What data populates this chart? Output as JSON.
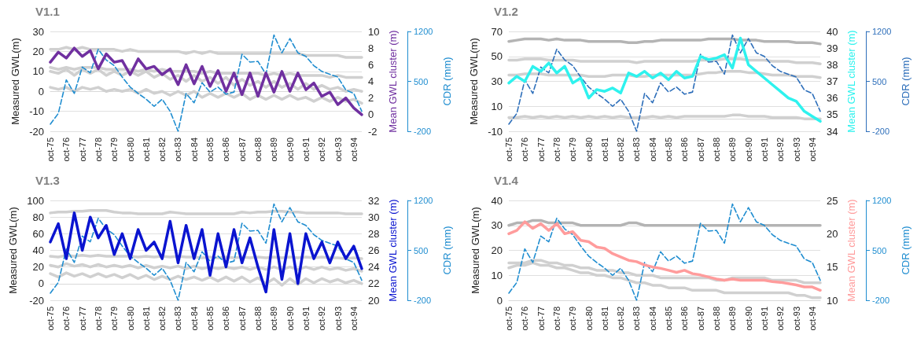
{
  "chart_data": [
    {
      "type": "line",
      "title": "V1.1",
      "ylabel": "Measured GWL(m)",
      "y2label": "Mean GWL cluster (m)",
      "y3label": "CDR (mm)",
      "marker": "none",
      "grid": "y",
      "categories": [
        "oct-75",
        null,
        "oct-76",
        null,
        "oct-77",
        null,
        "oct-78",
        null,
        "oct-79",
        null,
        "oct-80",
        null,
        "oct-81",
        null,
        "oct-82",
        null,
        "oct-83",
        null,
        "oct-84",
        null,
        "oct-85",
        null,
        "oct-86",
        null,
        "oct-87",
        null,
        "oct-88",
        null,
        "oct-89",
        null,
        "oct-90",
        null,
        "oct-91",
        null,
        "oct-92",
        null,
        "oct-93",
        null,
        "oct-94",
        null
      ],
      "ylim": [
        -20,
        30
      ],
      "yticks": [
        -20,
        -10,
        0,
        10,
        20,
        30
      ],
      "y2lim": [
        -2,
        10
      ],
      "y2ticks": [
        -2,
        0,
        2,
        4,
        6,
        8,
        10
      ],
      "y3lim": [
        -200,
        1200
      ],
      "y3ticks": [
        -200,
        500,
        1200
      ],
      "series": [
        {
          "color": "#d0d0d0",
          "values": [
            21,
            21,
            22,
            21,
            22,
            21,
            21,
            21,
            21,
            20,
            21,
            20,
            20,
            20,
            20,
            20,
            20,
            19,
            20,
            19,
            20,
            19,
            19,
            19,
            19,
            19,
            19,
            19,
            19,
            19,
            19,
            19,
            18,
            18,
            18,
            18,
            18,
            17,
            17,
            17
          ]
        },
        {
          "color": "#d0d0d0",
          "values": [
            12,
            11,
            12,
            11,
            12,
            12,
            12,
            11,
            11,
            11,
            11,
            10,
            11,
            10,
            11,
            10,
            10,
            10,
            10,
            9,
            10,
            9,
            9,
            9,
            9,
            9,
            9,
            8,
            9,
            8,
            9,
            8,
            8,
            8,
            8,
            7,
            8,
            7,
            7,
            7
          ]
        },
        {
          "color": "#d0d0d0",
          "values": [
            10,
            9,
            11,
            8,
            11,
            9,
            11,
            8,
            10,
            8,
            10,
            8,
            10,
            7,
            9,
            6,
            8,
            5,
            8,
            5,
            7,
            4,
            7,
            3,
            6,
            3,
            5,
            2,
            5,
            2,
            4,
            1,
            4,
            1,
            3,
            1,
            2,
            0,
            1,
            0
          ]
        },
        {
          "color": "#d0d0d0",
          "values": [
            2,
            1,
            2,
            0,
            2,
            1,
            2,
            0,
            1,
            0,
            1,
            -1,
            1,
            -1,
            0,
            -2,
            0,
            -2,
            0,
            -3,
            -1,
            -3,
            -1,
            -3,
            -1,
            -4,
            -2,
            -4,
            -2,
            -4,
            -2,
            -4,
            -3,
            -5,
            -3,
            -5,
            -3,
            -5,
            -4,
            -6
          ]
        },
        {
          "color": "#7030a0",
          "axis": "y2",
          "values": [
            6.3,
            7.5,
            6.8,
            8.0,
            7.0,
            7.7,
            5.5,
            7.3,
            6.3,
            6.5,
            4.8,
            6.7,
            5.5,
            5.8,
            4.8,
            5.5,
            3.6,
            6.0,
            3.7,
            5.8,
            3.4,
            5.3,
            2.8,
            5.0,
            2.4,
            5.0,
            2.2,
            5.0,
            2.7,
            5.2,
            2.8,
            5.0,
            3.0,
            3.8,
            2.2,
            2.7,
            1.2,
            2.0,
            0.8,
            0.0
          ]
        },
        {
          "color": "#1f8dd0",
          "axis": "y3",
          "line_style": "dashed",
          "values": [
            -100,
            50,
            520,
            330,
            700,
            620,
            950,
            800,
            720,
            560,
            420,
            330,
            250,
            150,
            250,
            80,
            -200,
            330,
            200,
            480,
            350,
            420,
            320,
            350,
            880,
            770,
            780,
            600,
            1150,
            900,
            1100,
            900,
            850,
            720,
            640,
            600,
            560,
            380,
            330,
            80
          ]
        }
      ]
    },
    {
      "type": "line",
      "title": "V1.2",
      "ylabel": "Measured GWL(m)",
      "y2label": "Mean GWL cluster (m)",
      "y3label": "CDR (mm)",
      "marker": "none",
      "grid": "y",
      "categories": [
        "oct-75",
        null,
        "oct-76",
        null,
        "oct-77",
        null,
        "oct-78",
        null,
        "oct-79",
        null,
        "oct-80",
        null,
        "oct-81",
        null,
        "oct-82",
        null,
        "oct-83",
        null,
        "oct-84",
        null,
        "oct-85",
        null,
        "oct-86",
        null,
        "oct-87",
        null,
        "oct-88",
        null,
        "oct-89",
        null,
        "oct-90",
        null,
        "oct-91",
        null,
        "oct-92",
        null,
        "oct-93",
        null,
        "oct-94",
        null
      ],
      "ylim": [
        -10,
        70
      ],
      "yticks": [
        -10,
        10,
        30,
        50,
        70
      ],
      "y2lim": [
        34,
        40
      ],
      "y2ticks": [
        34,
        35,
        36,
        37,
        38,
        39,
        40
      ],
      "y3lim": [
        -200,
        1200
      ],
      "y3ticks": [
        -200,
        500,
        1200
      ],
      "series": [
        {
          "color": "#b4b4b4",
          "values": [
            62,
            63,
            64,
            64,
            64,
            63,
            64,
            63,
            63,
            63,
            62,
            62,
            62,
            62,
            62,
            61,
            61,
            62,
            62,
            63,
            63,
            63,
            63,
            63,
            63,
            64,
            64,
            64,
            64,
            63,
            63,
            63,
            62,
            62,
            62,
            62,
            61,
            61,
            61,
            60
          ]
        },
        {
          "color": "#d0d0d0",
          "values": [
            47,
            47,
            48,
            48,
            48,
            47,
            47,
            47,
            47,
            46,
            46,
            46,
            46,
            46,
            46,
            46,
            45,
            46,
            46,
            46,
            46,
            46,
            46,
            46,
            47,
            47,
            47,
            48,
            48,
            48,
            47,
            47,
            47,
            46,
            46,
            46,
            45,
            45,
            45,
            44
          ]
        },
        {
          "color": "#d0d0d0",
          "values": [
            35,
            35,
            36,
            36,
            36,
            35,
            35,
            35,
            35,
            35,
            34,
            34,
            34,
            35,
            35,
            35,
            34,
            34,
            35,
            35,
            35,
            35,
            35,
            35,
            36,
            37,
            37,
            38,
            38,
            38,
            37,
            37,
            36,
            35,
            35,
            35,
            34,
            34,
            34,
            33
          ]
        },
        {
          "color": "#d0d0d0",
          "values": [
            1,
            1,
            2,
            1,
            2,
            1,
            2,
            1,
            2,
            1,
            2,
            1,
            2,
            1,
            2,
            1,
            1,
            1,
            2,
            1,
            2,
            1,
            2,
            2,
            2,
            2,
            2,
            2,
            3,
            3,
            2,
            2,
            2,
            1,
            1,
            1,
            1,
            0,
            0,
            0
          ]
        },
        {
          "color": "#2ef2ee",
          "axis": "y2",
          "values": [
            36.9,
            37.3,
            37.0,
            37.9,
            37.6,
            38.1,
            37.5,
            37.9,
            36.9,
            37.2,
            36.0,
            36.5,
            36.4,
            36.6,
            36.3,
            37.5,
            37.3,
            37.6,
            37.2,
            37.5,
            37.1,
            37.6,
            37.2,
            37.3,
            38.5,
            38.3,
            38.4,
            38.6,
            37.8,
            39.6,
            38.0,
            37.6,
            37.2,
            36.8,
            36.4,
            36.0,
            35.8,
            35.2,
            34.9,
            34.6
          ]
        },
        {
          "color": "#2e6fba",
          "axis": "y3",
          "line_style": "dashed",
          "values": [
            -100,
            50,
            520,
            330,
            700,
            620,
            950,
            800,
            720,
            560,
            420,
            330,
            250,
            150,
            250,
            80,
            -200,
            330,
            200,
            480,
            350,
            420,
            320,
            350,
            880,
            770,
            780,
            600,
            1150,
            900,
            1100,
            900,
            850,
            720,
            640,
            600,
            560,
            380,
            330,
            80
          ]
        }
      ]
    },
    {
      "type": "line",
      "title": "V1.3",
      "ylabel": "Measured GWL(m)",
      "y2label": "Mean GWL cluster (m)",
      "y3label": "CDR (mm)",
      "marker": "none",
      "grid": "y",
      "categories": [
        "oct-75",
        null,
        "oct-76",
        null,
        "oct-77",
        null,
        "oct-78",
        null,
        "oct-79",
        null,
        "oct-80",
        null,
        "oct-81",
        null,
        "oct-82",
        null,
        "oct-83",
        null,
        "oct-84",
        null,
        "oct-85",
        null,
        "oct-86",
        null,
        "oct-87",
        null,
        "oct-88",
        null,
        "oct-89",
        null,
        "oct-90",
        null,
        "oct-91",
        null,
        "oct-92",
        null,
        "oct-93",
        null,
        "oct-94",
        null
      ],
      "ylim": [
        -20,
        100
      ],
      "yticks": [
        -20,
        0,
        20,
        40,
        60,
        80,
        100
      ],
      "y2lim": [
        20,
        32
      ],
      "y2ticks": [
        20,
        22,
        24,
        26,
        28,
        30,
        32
      ],
      "y3lim": [
        -200,
        1200
      ],
      "y3ticks": [
        -200,
        500,
        1200
      ],
      "series": [
        {
          "color": "#d0d0d0",
          "values": [
            85,
            86,
            86,
            87,
            87,
            88,
            88,
            88,
            86,
            85,
            85,
            84,
            84,
            84,
            84,
            86,
            85,
            84,
            84,
            84,
            84,
            84,
            84,
            84,
            86,
            85,
            86,
            86,
            87,
            87,
            86,
            86,
            85,
            85,
            85,
            85,
            85,
            84,
            84,
            84
          ]
        },
        {
          "color": "#d0d0d0",
          "values": [
            33,
            32,
            34,
            33,
            34,
            33,
            34,
            33,
            33,
            33,
            33,
            32,
            33,
            32,
            33,
            32,
            33,
            32,
            32,
            31,
            32,
            31,
            32,
            31,
            32,
            31,
            32,
            31,
            32,
            31,
            32,
            31,
            32,
            31,
            32,
            31,
            31,
            30,
            31,
            30
          ]
        },
        {
          "color": "#d0d0d0",
          "values": [
            22,
            20,
            24,
            21,
            23,
            20,
            23,
            20,
            22,
            20,
            22,
            19,
            22,
            19,
            21,
            19,
            21,
            18,
            21,
            18,
            20,
            18,
            20,
            18,
            20,
            17,
            20,
            17,
            20,
            17,
            20,
            17,
            20,
            17,
            20,
            17,
            19,
            16,
            18,
            15
          ]
        },
        {
          "color": "#d0d0d0",
          "values": [
            12,
            8,
            13,
            9,
            12,
            8,
            12,
            8,
            11,
            7,
            11,
            6,
            10,
            5,
            9,
            5,
            9,
            5,
            8,
            4,
            8,
            3,
            8,
            3,
            8,
            2,
            7,
            0,
            6,
            -2,
            6,
            -1,
            6,
            1,
            6,
            2,
            5,
            1,
            4,
            0
          ]
        },
        {
          "color": "#0a14d0",
          "axis": "y2",
          "values": [
            27.0,
            29.2,
            25.0,
            30.5,
            26.0,
            30.0,
            27.5,
            29.0,
            25.5,
            28.0,
            25.0,
            28.5,
            26.0,
            27.0,
            25.0,
            29.5,
            24.5,
            29.0,
            25.0,
            28.5,
            23.0,
            28.0,
            24.0,
            28.5,
            24.5,
            27.5,
            24.0,
            21.0,
            28.5,
            22.5,
            28.0,
            22.0,
            28.0,
            25.0,
            27.0,
            24.5,
            27.0,
            25.0,
            26.5,
            23.8
          ]
        },
        {
          "color": "#1f8dd0",
          "axis": "y3",
          "line_style": "dashed",
          "values": [
            -100,
            50,
            520,
            330,
            700,
            620,
            950,
            800,
            720,
            560,
            420,
            330,
            250,
            150,
            250,
            80,
            -200,
            330,
            200,
            480,
            350,
            420,
            320,
            350,
            880,
            770,
            780,
            600,
            1150,
            900,
            1100,
            900,
            850,
            720,
            640,
            600,
            560,
            380,
            330,
            80
          ]
        }
      ]
    },
    {
      "type": "line",
      "title": "V1.4",
      "ylabel": "Measured GWL(m)",
      "y2label": "Mean GWL cluster (m)",
      "y3label": "CDR (mm)",
      "marker": "none",
      "grid": "y",
      "categories": [
        "oct-75",
        null,
        "oct-76",
        null,
        "oct-77",
        null,
        "oct-78",
        null,
        "oct-79",
        null,
        "oct-80",
        null,
        "oct-81",
        null,
        "oct-82",
        null,
        "oct-83",
        null,
        "oct-84",
        null,
        "oct-85",
        null,
        "oct-86",
        null,
        "oct-87",
        null,
        "oct-88",
        null,
        "oct-89",
        null,
        "oct-90",
        null,
        "oct-91",
        null,
        "oct-92",
        null,
        "oct-93",
        null,
        "oct-94",
        null
      ],
      "ylim": [
        0,
        40
      ],
      "yticks": [
        0,
        10,
        20,
        30,
        40
      ],
      "y2lim": [
        10,
        25
      ],
      "y2ticks": [
        10,
        15,
        20,
        25
      ],
      "y3lim": [
        -200,
        1200
      ],
      "y3ticks": [
        -200,
        500,
        1200
      ],
      "series": [
        {
          "color": "#b4b4b4",
          "values": [
            30,
            31,
            31,
            32,
            32,
            31,
            31,
            31,
            31,
            30,
            30,
            30,
            30,
            30,
            30,
            31,
            31,
            30,
            30,
            30,
            30,
            30,
            30,
            30,
            30,
            30,
            30,
            30,
            30,
            30,
            30,
            30,
            30,
            30,
            30,
            30,
            30,
            30,
            30,
            30
          ]
        },
        {
          "color": "#d0d0d0",
          "values": [
            15,
            15,
            15,
            16,
            16,
            15,
            15,
            14,
            14,
            13,
            13,
            12,
            12,
            12,
            11,
            11,
            10,
            10,
            10,
            9,
            9,
            9,
            9,
            9,
            9,
            9,
            8,
            8,
            9,
            9,
            9,
            9,
            9,
            8,
            8,
            8,
            8,
            7,
            7,
            7
          ]
        },
        {
          "color": "#d0d0d0",
          "values": [
            13,
            14,
            14,
            15,
            14,
            14,
            13,
            13,
            12,
            11,
            11,
            10,
            10,
            9,
            9,
            8,
            7,
            7,
            6,
            6,
            5,
            5,
            5,
            4,
            4,
            4,
            4,
            3,
            3,
            3,
            3,
            3,
            3,
            3,
            3,
            3,
            2,
            2,
            1,
            1
          ]
        },
        {
          "color": "#ff9c9c",
          "axis": "y2",
          "values": [
            20.0,
            20.5,
            21.8,
            20.8,
            21.5,
            20.5,
            21.5,
            20.0,
            20.3,
            19.0,
            18.8,
            18.0,
            17.8,
            17.0,
            16.5,
            16.0,
            15.8,
            15.3,
            15.0,
            14.8,
            14.5,
            14.2,
            14.5,
            14.0,
            13.8,
            13.5,
            13.2,
            13.0,
            13.2,
            13.0,
            13.0,
            13.0,
            13.0,
            12.8,
            12.7,
            12.5,
            12.3,
            12.0,
            12.0,
            11.5
          ]
        },
        {
          "color": "#1f8dd0",
          "axis": "y3",
          "line_style": "dashed",
          "values": [
            -100,
            50,
            520,
            330,
            700,
            620,
            950,
            800,
            720,
            560,
            420,
            330,
            250,
            150,
            250,
            80,
            -200,
            330,
            200,
            480,
            350,
            420,
            320,
            350,
            880,
            770,
            780,
            600,
            1150,
            900,
            1100,
            900,
            850,
            720,
            640,
            600,
            560,
            380,
            330,
            80
          ]
        }
      ]
    }
  ]
}
